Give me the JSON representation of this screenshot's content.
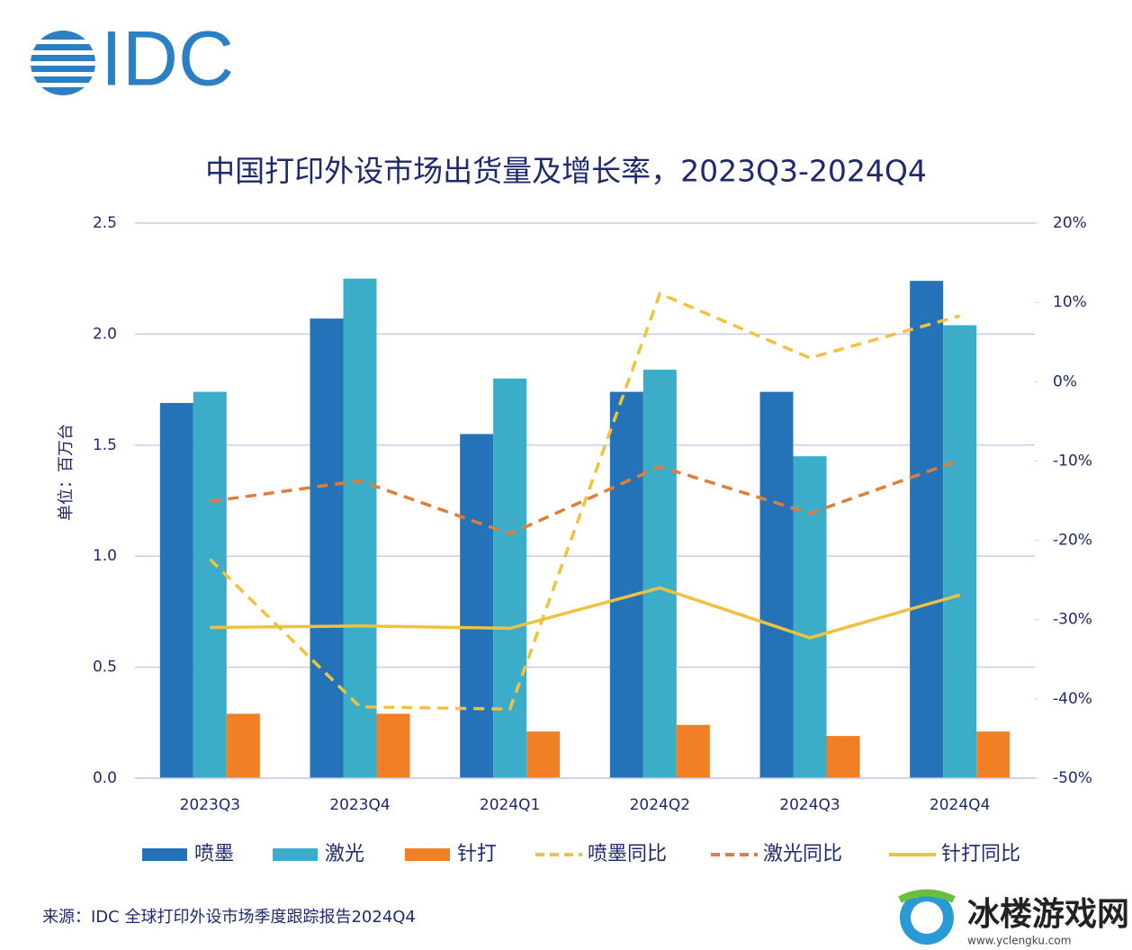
{
  "logo": "IDC",
  "chart_data": {
    "type": "combo",
    "title": "中国打印外设市场出货量及增长率，2023Q3-2024Q4",
    "y_label": "单位：百万台",
    "categories": [
      "2023Q3",
      "2023Q4",
      "2024Q1",
      "2024Q2",
      "2024Q3",
      "2024Q4"
    ],
    "ylim": [
      0,
      2.5
    ],
    "yticks": [
      {
        "value": 0,
        "label": "0.0"
      },
      0.5,
      {
        "value": 1,
        "label": "1.0"
      },
      1.5,
      {
        "value": 2,
        "label": "2.0"
      },
      2.5
    ],
    "y2lim": [
      -50,
      20
    ],
    "y2ticks": [
      {
        "value": -50,
        "label": "-50%"
      },
      {
        "value": -40,
        "label": "-40%"
      },
      {
        "value": -30,
        "label": "-30%"
      },
      {
        "value": -20,
        "label": "-20%"
      },
      {
        "value": -10,
        "label": "-10%"
      },
      {
        "value": 0,
        "label": "0%"
      },
      {
        "value": 10,
        "label": "10%"
      },
      {
        "value": 20,
        "label": "20%"
      }
    ],
    "grid": true,
    "series": [
      {
        "name": "喷墨",
        "type": "bar",
        "color": "#2473b9",
        "values": [
          1.69,
          2.07,
          1.55,
          1.74,
          1.74,
          2.24
        ]
      },
      {
        "name": "激光",
        "type": "bar",
        "color": "#3badc8",
        "values": [
          1.74,
          2.25,
          1.8,
          1.84,
          1.45,
          2.04
        ]
      },
      {
        "name": "针打",
        "type": "bar",
        "color": "#f07f25",
        "values": [
          0.29,
          0.29,
          0.21,
          0.24,
          0.19,
          0.21
        ]
      },
      {
        "name": "喷墨同比",
        "type": "line",
        "dashed": true,
        "axis": "y2",
        "color": "#f2c23e",
        "values": [
          -22.4,
          -41,
          -41.3,
          11.1,
          3,
          8.3
        ]
      },
      {
        "name": "激光同比",
        "type": "line",
        "dashed": true,
        "axis": "y2",
        "color": "#e07d3b",
        "values": [
          -15.1,
          -12.5,
          -19.2,
          -10.7,
          -16.6,
          -9.9
        ]
      },
      {
        "name": "针打同比",
        "type": "line",
        "dashed": false,
        "axis": "y2",
        "color": "#eec23f",
        "values": [
          -31,
          -30.8,
          -31.1,
          -26,
          -32.3,
          -26.9
        ]
      }
    ]
  },
  "source": "来源：IDC 全球打印外设市场季度跟踪报告2024Q4",
  "watermark": {
    "text": "冰楼游戏网",
    "url": "www.yclengku.com"
  }
}
